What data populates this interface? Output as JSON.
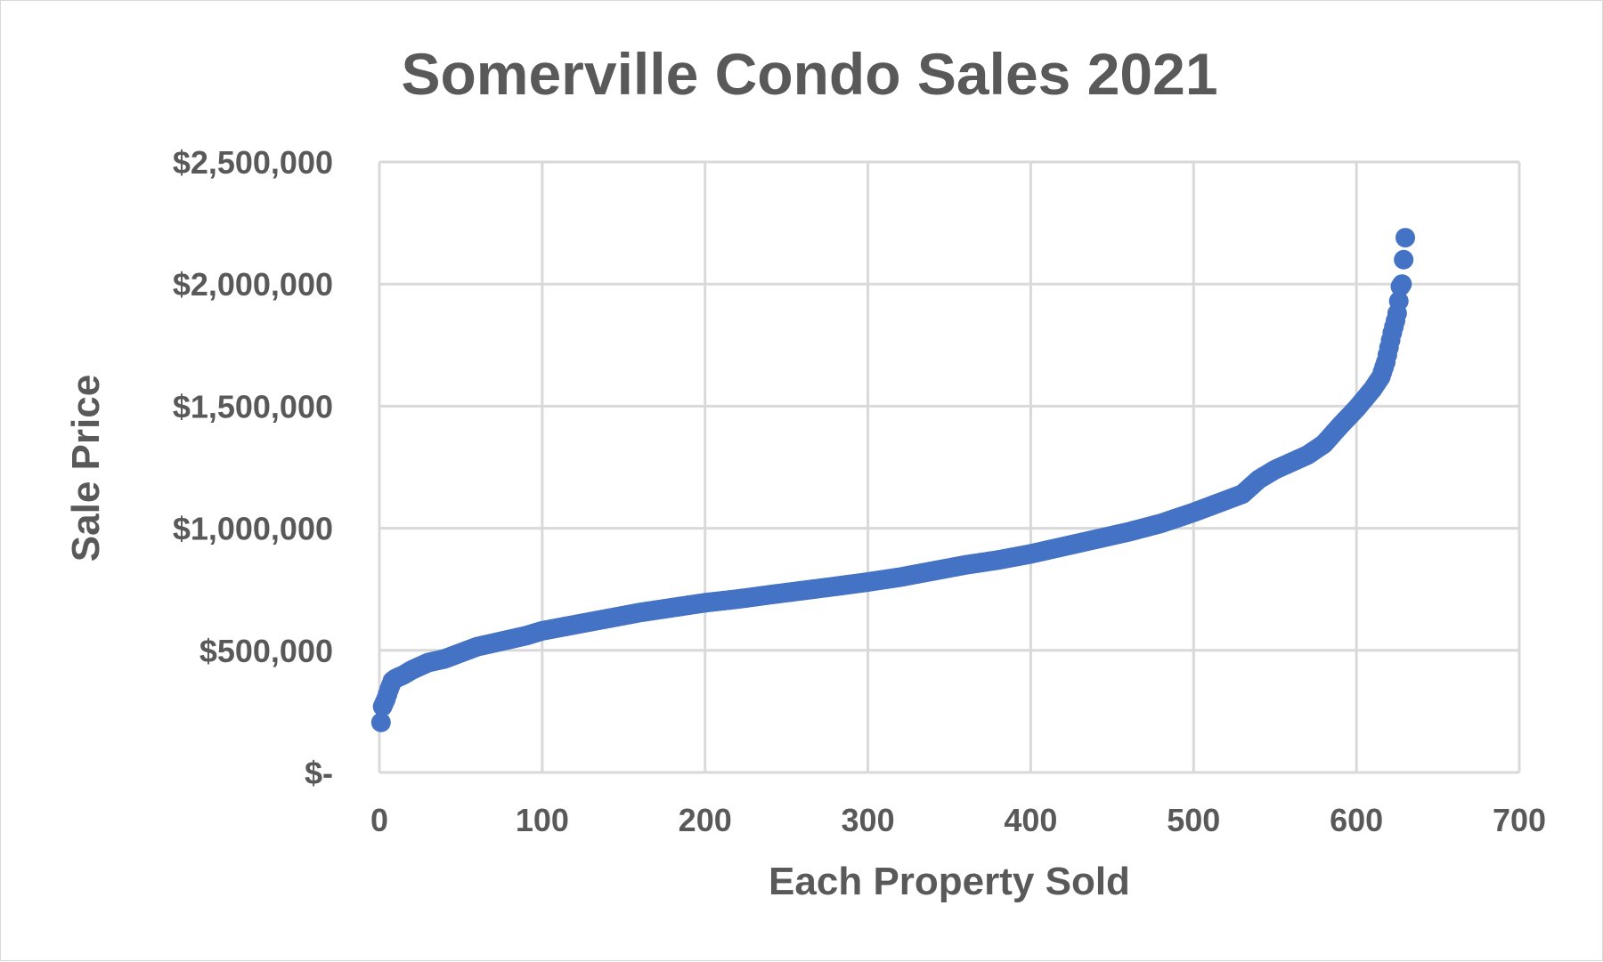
{
  "chart_data": {
    "type": "scatter",
    "title": "Somerville Condo Sales 2021",
    "xlabel": "Each Property Sold",
    "ylabel": "Sale Price",
    "xlim": [
      0,
      700
    ],
    "ylim": [
      0,
      2500000
    ],
    "x_ticks": [
      0,
      100,
      200,
      300,
      400,
      500,
      600,
      700
    ],
    "x_tick_labels": [
      "0",
      "100",
      "200",
      "300",
      "400",
      "500",
      "600",
      "700"
    ],
    "y_ticks": [
      0,
      500000,
      1000000,
      1500000,
      2000000,
      2500000
    ],
    "y_tick_labels": [
      "$-",
      "$500,000",
      "$1,000,000",
      "$1,500,000",
      "$2,000,000",
      "$2,500,000"
    ],
    "grid": true,
    "legend": "none",
    "series_color": "#4472c4",
    "point_count": 630,
    "series": [
      {
        "x": [
          1,
          2,
          4,
          6,
          8,
          10,
          15,
          20,
          25,
          30,
          40,
          50,
          60,
          70,
          80,
          90,
          100,
          120,
          140,
          160,
          180,
          200,
          220,
          240,
          260,
          280,
          300,
          320,
          340,
          360,
          380,
          400,
          420,
          440,
          460,
          480,
          500,
          520,
          530,
          540,
          550,
          560,
          570,
          580,
          590,
          600,
          605,
          610,
          615,
          618,
          620,
          622,
          624,
          625,
          626,
          627,
          628,
          629,
          630
        ],
        "y": [
          205000,
          270000,
          300000,
          340000,
          375000,
          385000,
          400000,
          420000,
          435000,
          450000,
          465000,
          490000,
          515000,
          530000,
          545000,
          560000,
          580000,
          605000,
          630000,
          655000,
          675000,
          695000,
          710000,
          728000,
          745000,
          762000,
          780000,
          800000,
          825000,
          850000,
          870000,
          895000,
          925000,
          955000,
          985000,
          1020000,
          1065000,
          1115000,
          1140000,
          1200000,
          1240000,
          1270000,
          1300000,
          1345000,
          1420000,
          1490000,
          1530000,
          1570000,
          1620000,
          1680000,
          1740000,
          1800000,
          1850000,
          1880000,
          1930000,
          1990000,
          2000000,
          2100000,
          2190000
        ]
      }
    ]
  }
}
